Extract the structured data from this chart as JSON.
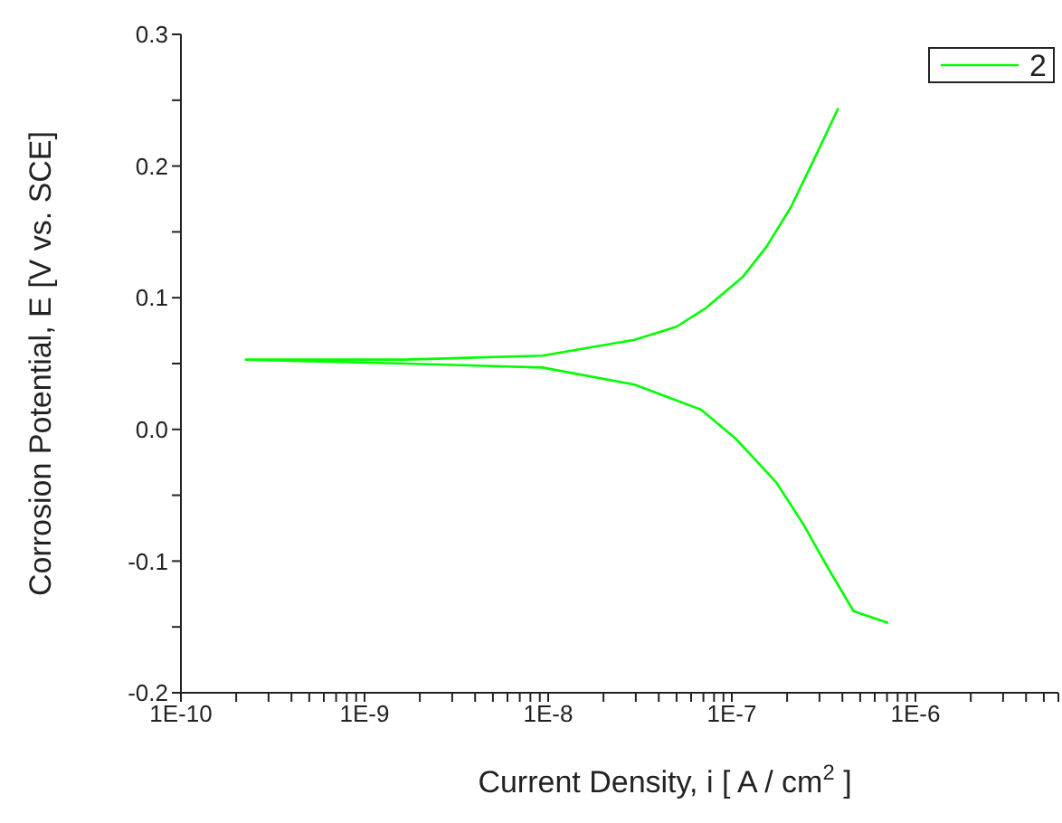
{
  "chart_data": {
    "type": "line",
    "xlabel": "Current Density, i [ A / cm$^{2}$ ]",
    "ylabel": "Corrosion Potential, E [V vs. SCE]",
    "x": [
      7.1e-07,
      4.6e-07,
      3.3e-07,
      2.45e-07,
      1.74e-07,
      1.05e-07,
      6.8e-08,
      2.95e-08,
      9.3e-09,
      1.66e-09,
      2.26e-10,
      1.66e-09,
      9.3e-09,
      2.95e-08,
      5e-08,
      7.2e-08,
      1.15e-07,
      1.55e-07,
      2.1e-07,
      2.8e-07,
      3.8e-07
    ],
    "series": [
      {
        "name": "2",
        "color": "#00ff00",
        "values": [
          -0.147,
          -0.138,
          -0.104,
          -0.072,
          -0.04,
          -0.007,
          0.015,
          0.034,
          0.047,
          0.05,
          0.053,
          0.053,
          0.056,
          0.068,
          0.078,
          0.092,
          0.116,
          0.139,
          0.169,
          0.205,
          0.244
        ]
      }
    ],
    "log": "x",
    "xlim": [
      1e-10,
      6e-06
    ],
    "xticks": [
      {
        "value": 1e-10,
        "label": "1E-10"
      },
      {
        "value": 2e-10,
        "label": null
      },
      {
        "value": 3e-10,
        "label": null
      },
      {
        "value": 4e-10,
        "label": null
      },
      {
        "value": 5e-10,
        "label": null
      },
      {
        "value": 6e-10,
        "label": null
      },
      {
        "value": 7e-10,
        "label": null
      },
      {
        "value": 8e-10,
        "label": null
      },
      {
        "value": 9e-10,
        "label": null
      },
      {
        "value": 1e-09,
        "label": "1E-9"
      },
      {
        "value": 2e-09,
        "label": null
      },
      {
        "value": 3e-09,
        "label": null
      },
      {
        "value": 4e-09,
        "label": null
      },
      {
        "value": 5e-09,
        "label": null
      },
      {
        "value": 6e-09,
        "label": null
      },
      {
        "value": 7e-09,
        "label": null
      },
      {
        "value": 8e-09,
        "label": null
      },
      {
        "value": 9e-09,
        "label": null
      },
      {
        "value": 1e-08,
        "label": "1E-8"
      },
      {
        "value": 2e-08,
        "label": null
      },
      {
        "value": 3e-08,
        "label": null
      },
      {
        "value": 4e-08,
        "label": null
      },
      {
        "value": 5e-08,
        "label": null
      },
      {
        "value": 6e-08,
        "label": null
      },
      {
        "value": 7e-08,
        "label": null
      },
      {
        "value": 8e-08,
        "label": null
      },
      {
        "value": 9e-08,
        "label": null
      },
      {
        "value": 1e-07,
        "label": "1E-7"
      },
      {
        "value": 2e-07,
        "label": null
      },
      {
        "value": 3e-07,
        "label": null
      },
      {
        "value": 4e-07,
        "label": null
      },
      {
        "value": 5e-07,
        "label": null
      },
      {
        "value": 6e-07,
        "label": null
      },
      {
        "value": 7e-07,
        "label": null
      },
      {
        "value": 8e-07,
        "label": null
      },
      {
        "value": 9e-07,
        "label": null
      },
      {
        "value": 1e-06,
        "label": "1E-6"
      },
      {
        "value": 2e-06,
        "label": null
      },
      {
        "value": 3e-06,
        "label": null
      },
      {
        "value": 4e-06,
        "label": null
      },
      {
        "value": 5e-06,
        "label": null
      },
      {
        "value": 6e-06,
        "label": null
      }
    ],
    "ylim": [
      -0.2,
      0.3
    ],
    "yticks": [
      -0.2,
      {
        "value": -0.15,
        "label": null
      },
      -0.1,
      {
        "value": -0.05,
        "label": null
      },
      {
        "value": 0,
        "label": "0.0"
      },
      {
        "value": 0.05,
        "label": null
      },
      0.1,
      {
        "value": 0.15,
        "label": null
      },
      0.2,
      {
        "value": 0.25,
        "label": null
      },
      0.3
    ],
    "grid": false,
    "legend": "top right",
    "marker": "none",
    "line_style": "solid"
  }
}
